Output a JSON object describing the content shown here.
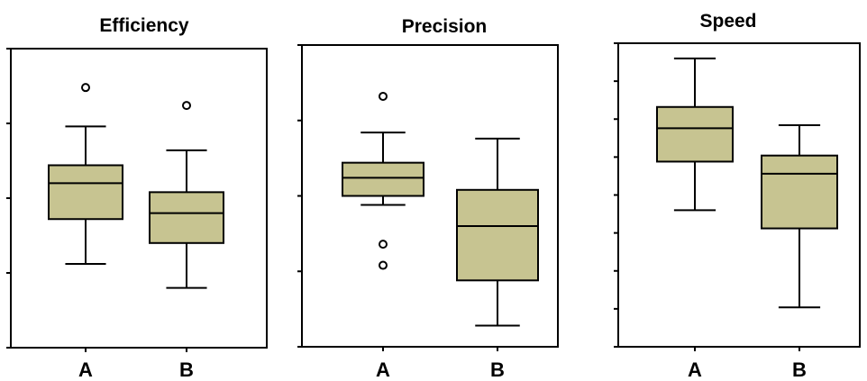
{
  "chart_data": [
    {
      "type": "box",
      "title": "Efficiency",
      "categories": [
        "A",
        "B"
      ],
      "ylim": [
        0,
        100
      ],
      "y_ticks": [
        0,
        25,
        50,
        75,
        100
      ],
      "tick_labels_shown": false,
      "box_color": "#c7c491",
      "boxes": [
        {
          "category": "A",
          "whisker_low": 28,
          "q1": 43,
          "median": 55,
          "q3": 61,
          "whisker_high": 74,
          "outliers": [
            87
          ]
        },
        {
          "category": "B",
          "whisker_low": 20,
          "q1": 35,
          "median": 45,
          "q3": 52,
          "whisker_high": 66,
          "outliers": [
            81
          ]
        }
      ]
    },
    {
      "type": "box",
      "title": "Precision",
      "categories": [
        "A",
        "B"
      ],
      "ylim": [
        0,
        100
      ],
      "y_ticks": [
        0,
        25,
        50,
        75,
        100
      ],
      "tick_labels_shown": false,
      "box_color": "#c7c491",
      "boxes": [
        {
          "category": "A",
          "whisker_low": 47,
          "q1": 50,
          "median": 56,
          "q3": 61,
          "whisker_high": 71,
          "outliers": [
            83,
            34,
            27
          ]
        },
        {
          "category": "B",
          "whisker_low": 7,
          "q1": 22,
          "median": 40,
          "q3": 52,
          "whisker_high": 69,
          "outliers": []
        }
      ]
    },
    {
      "type": "box",
      "title": "Speed",
      "categories": [
        "A",
        "B"
      ],
      "ylim": [
        0,
        100
      ],
      "y_ticks": [
        0,
        12.5,
        25,
        37.5,
        50,
        62.5,
        75,
        87.5,
        100
      ],
      "tick_labels_shown": false,
      "box_color": "#c7c491",
      "boxes": [
        {
          "category": "A",
          "whisker_low": 45,
          "q1": 61,
          "median": 72,
          "q3": 79,
          "whisker_high": 95,
          "outliers": []
        },
        {
          "category": "B",
          "whisker_low": 13,
          "q1": 39,
          "median": 57,
          "q3": 63,
          "whisker_high": 73,
          "outliers": []
        }
      ]
    }
  ]
}
